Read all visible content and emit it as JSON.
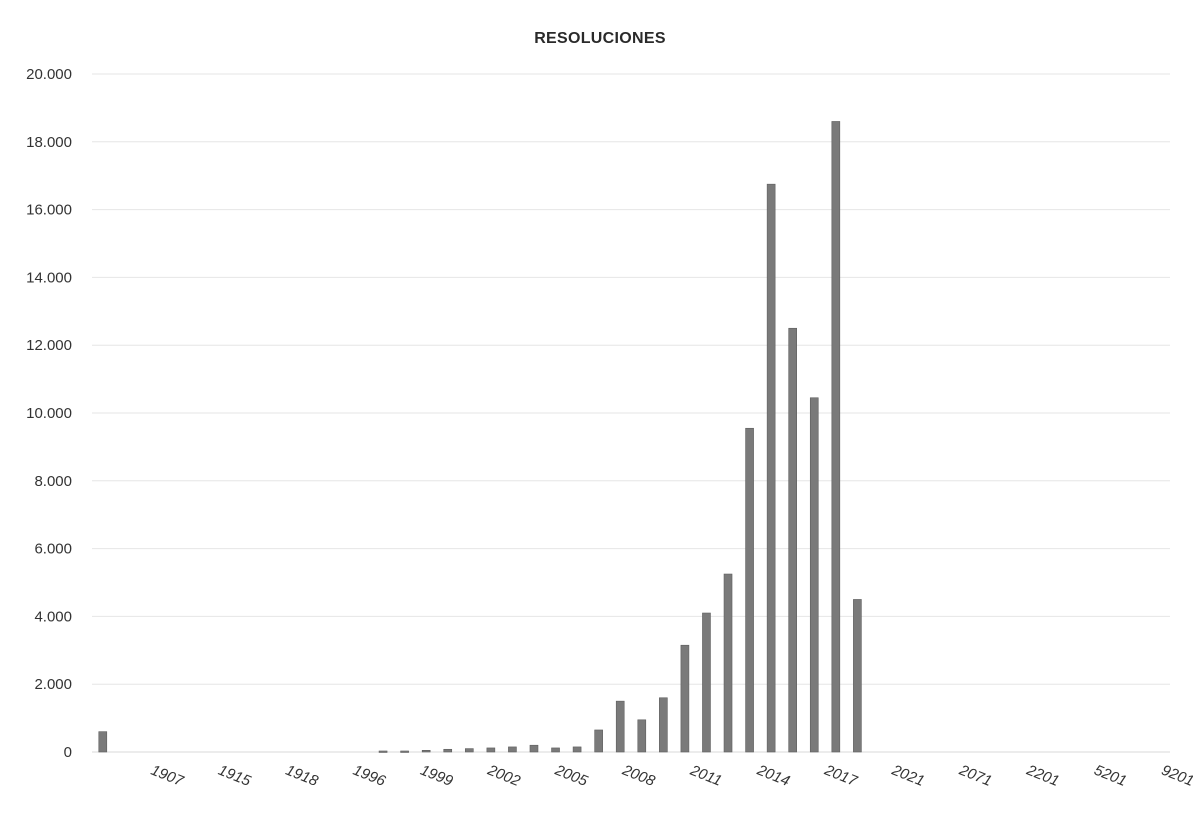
{
  "chart_data": {
    "type": "bar",
    "title": "RESOLUCIONES",
    "xlabel": "",
    "ylabel": "",
    "ylim": [
      0,
      20000
    ],
    "yticks": [
      0,
      2000,
      4000,
      6000,
      8000,
      10000,
      12000,
      14000,
      16000,
      18000,
      20000
    ],
    "ytick_labels": [
      "0",
      "2.000",
      "4.000",
      "6.000",
      "8.000",
      "10.000",
      "12.000",
      "14.000",
      "16.000",
      "18.000",
      "20.000"
    ],
    "xtick_labels": [
      "1907",
      "1915",
      "1918",
      "1996",
      "1999",
      "2002",
      "2005",
      "2008",
      "2011",
      "2014",
      "2017",
      "2021",
      "2071",
      "2201",
      "5201",
      "9201"
    ],
    "grid": true,
    "legend": "none",
    "bar_color": "#7a7a7a",
    "values": [
      600,
      0,
      0,
      0,
      0,
      0,
      0,
      0,
      0,
      0,
      0,
      0,
      0,
      30,
      30,
      50,
      80,
      100,
      120,
      150,
      200,
      120,
      150,
      650,
      1500,
      950,
      1600,
      3150,
      4100,
      5250,
      9550,
      16750,
      12500,
      10450,
      18600,
      4500,
      0,
      0,
      0,
      0,
      0,
      0,
      0,
      0,
      0,
      0,
      0,
      0,
      0,
      0
    ]
  }
}
